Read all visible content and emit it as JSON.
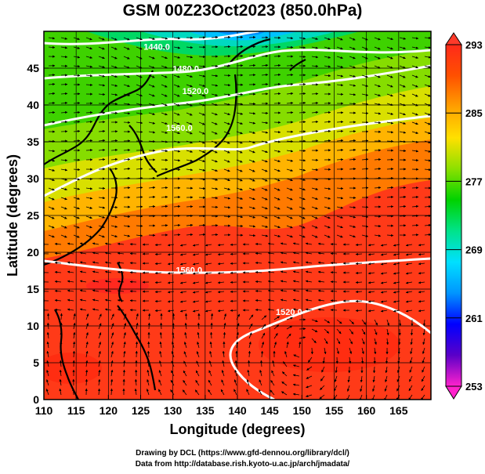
{
  "title": "GSM 00Z23Oct2023 (850.0hPa)",
  "xlabel": "Longitude (degrees)",
  "ylabel": "Latitude  (degrees)",
  "credits": [
    "Drawing by DCL (https://www.gfd-dennou.org/library/dcl/)",
    "Data from http://database.rish.kyoto-u.ac.jp/arch/jmadata/"
  ],
  "chart_data": {
    "type": "heatmap",
    "title": "GSM 00Z23Oct2023 (850.0hPa)",
    "xlabel": "Longitude (degrees)",
    "ylabel": "Latitude  (degrees)",
    "xlim": [
      110,
      170
    ],
    "ylim": [
      0,
      50
    ],
    "x_ticks": [
      110,
      115,
      120,
      125,
      130,
      135,
      140,
      145,
      150,
      155,
      160,
      165
    ],
    "y_ticks": [
      0,
      5,
      10,
      15,
      20,
      25,
      30,
      35,
      40,
      45
    ],
    "grid": true,
    "colorbar": {
      "min": 253,
      "max": 293,
      "ticks": [
        293,
        285,
        277,
        269,
        261,
        253
      ],
      "colors": [
        "#ff22cc",
        "#5a00c8",
        "#0000ff",
        "#0095ff",
        "#00e0ff",
        "#00e38a",
        "#00d200",
        "#8ce000",
        "#ffe000",
        "#ffa000",
        "#ff5000",
        "#ff2a1a"
      ],
      "placement": "right"
    },
    "contours": [
      {
        "label": "1440.0",
        "at": [
          127.5,
          47.5
        ]
      },
      {
        "label": "1480.0",
        "at": [
          132,
          44.5
        ]
      },
      {
        "label": "1520.0",
        "at": [
          133.5,
          41.5
        ]
      },
      {
        "label": "1560.0",
        "at": [
          131,
          36.5
        ]
      },
      {
        "label": "1560.0",
        "at": [
          132.5,
          17.2
        ]
      },
      {
        "label": "1520.0",
        "at": [
          148,
          11.5
        ]
      }
    ]
  }
}
